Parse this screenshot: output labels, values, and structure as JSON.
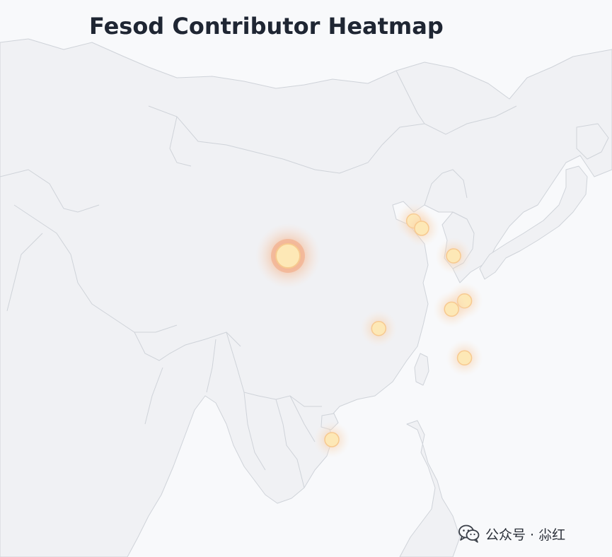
{
  "title": "Fesod Contributor Heatmap",
  "watermark": {
    "text": "公众号 · 尛红",
    "icon": "wechat-icon"
  },
  "colors": {
    "background": "#f8f9fb",
    "land": "#f0f1f4",
    "border": "#cfd3d9",
    "point_core": "#fde8b6",
    "point_glow": "#f6b27a",
    "title": "#1f2633"
  },
  "map_data": {
    "type": "heatmap",
    "points": [
      {
        "lon": 103.8,
        "lat": 36.1,
        "intensity": 1.0
      },
      {
        "lon": 116.4,
        "lat": 39.9,
        "intensity": 0.45
      },
      {
        "lon": 117.2,
        "lat": 39.1,
        "intensity": 0.45
      },
      {
        "lon": 120.4,
        "lat": 36.1,
        "intensity": 0.45
      },
      {
        "lon": 121.5,
        "lat": 31.2,
        "intensity": 0.45
      },
      {
        "lon": 120.2,
        "lat": 30.3,
        "intensity": 0.45
      },
      {
        "lon": 112.9,
        "lat": 28.2,
        "intensity": 0.45
      },
      {
        "lon": 121.5,
        "lat": 25.0,
        "intensity": 0.45
      },
      {
        "lon": 108.2,
        "lat": 16.1,
        "intensity": 0.45
      }
    ]
  }
}
